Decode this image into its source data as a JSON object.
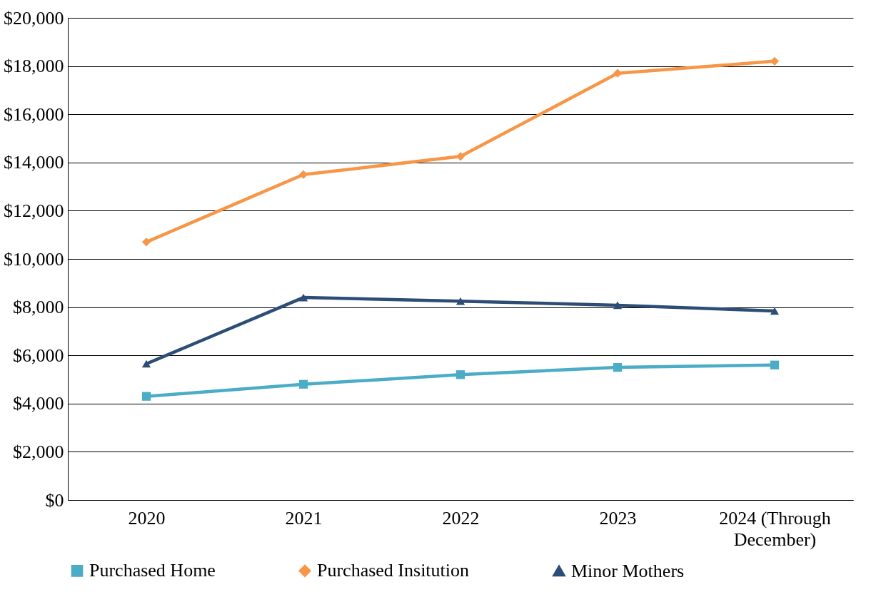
{
  "chart_data": {
    "type": "line",
    "categories": [
      "2020",
      "2021",
      "2022",
      "2023",
      "2024 (Through December)"
    ],
    "series": [
      {
        "name": "Purchased Home",
        "color": "#4bacc6",
        "marker": "square",
        "values": [
          4300,
          4800,
          5200,
          5500,
          5600
        ]
      },
      {
        "name": "Purchased Insitution",
        "color": "#f79646",
        "marker": "diamond",
        "values": [
          10700,
          13500,
          14250,
          17700,
          18200
        ]
      },
      {
        "name": "Minor Mothers",
        "color": "#2c4d75",
        "marker": "triangle",
        "values": [
          5650,
          8400,
          8250,
          8080,
          7840
        ]
      }
    ],
    "ylim": [
      0,
      20000
    ],
    "yticks": [
      {
        "value": 0,
        "label": "$0"
      },
      {
        "value": 2000,
        "label": "$2,000"
      },
      {
        "value": 4000,
        "label": "$4,000"
      },
      {
        "value": 6000,
        "label": "$6,000"
      },
      {
        "value": 8000,
        "label": "$8,000"
      },
      {
        "value": 10000,
        "label": "$10,000"
      },
      {
        "value": 12000,
        "label": "$12,000"
      },
      {
        "value": 14000,
        "label": "$14,000"
      },
      {
        "value": 16000,
        "label": "$16,000"
      },
      {
        "value": 18000,
        "label": "$18,000"
      },
      {
        "value": 20000,
        "label": "$20,000"
      }
    ],
    "grid": "y",
    "legend": "bottom",
    "line_style": "solid"
  }
}
